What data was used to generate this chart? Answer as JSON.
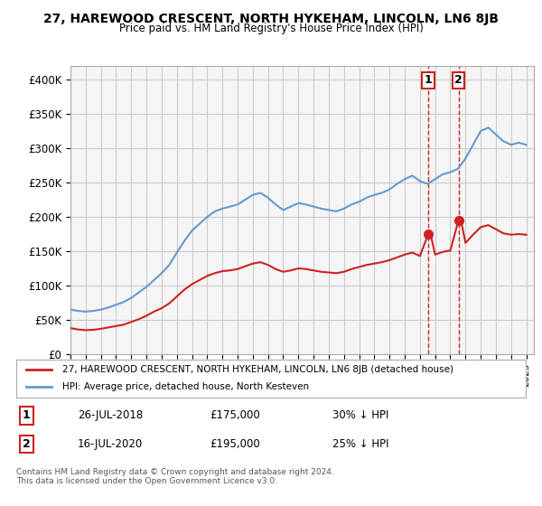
{
  "title": "27, HAREWOOD CRESCENT, NORTH HYKEHAM, LINCOLN, LN6 8JB",
  "subtitle": "Price paid vs. HM Land Registry's House Price Index (HPI)",
  "ylabel_ticks": [
    "£0",
    "£50K",
    "£100K",
    "£150K",
    "£200K",
    "£250K",
    "£300K",
    "£350K",
    "£400K"
  ],
  "ytick_values": [
    0,
    50000,
    100000,
    150000,
    200000,
    250000,
    300000,
    350000,
    400000
  ],
  "ylim": [
    0,
    420000
  ],
  "xlim_start": 1995.0,
  "xlim_end": 2025.5,
  "hpi_color": "#6699cc",
  "price_color": "#cc2222",
  "marker1_date": 2018.55,
  "marker2_date": 2020.54,
  "marker1_price": 175000,
  "marker2_price": 195000,
  "legend_label1": "27, HAREWOOD CRESCENT, NORTH HYKEHAM, LINCOLN, LN6 8JB (detached house)",
  "legend_label2": "HPI: Average price, detached house, North Kesteven",
  "annotation1_label": "1",
  "annotation2_label": "2",
  "table_row1": [
    "1",
    "26-JUL-2018",
    "£175,000",
    "30% ↓ HPI"
  ],
  "table_row2": [
    "2",
    "16-JUL-2020",
    "£195,000",
    "25% ↓ HPI"
  ],
  "footer": "Contains HM Land Registry data © Crown copyright and database right 2024.\nThis data is licensed under the Open Government Licence v3.0.",
  "bg_color": "#ffffff",
  "grid_color": "#cccccc",
  "plot_bg": "#f5f5f5"
}
